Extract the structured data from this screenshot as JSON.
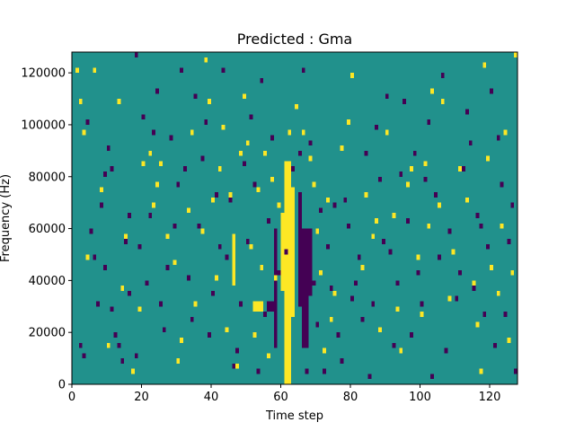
{
  "chart_data": {
    "type": "heatmap",
    "title": "Predicted : Gma",
    "xlabel": "Time step",
    "ylabel": "Frequency (Hz)",
    "xlim": [
      0,
      128
    ],
    "ylim": [
      0,
      128000
    ],
    "x_ticks": [
      0,
      20,
      40,
      60,
      80,
      100,
      120
    ],
    "y_ticks": [
      0,
      20000,
      40000,
      60000,
      80000,
      100000,
      120000
    ],
    "grid": false,
    "n_time_steps": 128,
    "n_freq_bins": 64,
    "bin_height_hz": 2000,
    "value_scale": {
      "low": -1,
      "background": 0,
      "high": 1
    },
    "colors": {
      "low": "#440154",
      "background": "#21918c",
      "high": "#fde725"
    },
    "yellow_bands": [
      {
        "t": [
          61,
          63
        ],
        "f": [
          0,
          86000
        ]
      },
      {
        "t": [
          60,
          61
        ],
        "f": [
          36000,
          66000
        ]
      },
      {
        "t": [
          63,
          64
        ],
        "f": [
          26000,
          76000
        ]
      },
      {
        "t": [
          52,
          55
        ],
        "f": [
          28000,
          32000
        ]
      },
      {
        "t": [
          46,
          47
        ],
        "f": [
          38000,
          58000
        ]
      }
    ],
    "purple_bands": [
      {
        "t": [
          66,
          68
        ],
        "f": [
          14000,
          60000
        ]
      },
      {
        "t": [
          65,
          66
        ],
        "f": [
          30000,
          74000
        ]
      },
      {
        "t": [
          68,
          69
        ],
        "f": [
          34000,
          60000
        ]
      },
      {
        "t": [
          56,
          59
        ],
        "f": [
          28000,
          32000
        ]
      },
      {
        "t": [
          58,
          59
        ],
        "f": [
          14000,
          60000
        ]
      }
    ],
    "yellow_cells": [
      [
        1,
        120000
      ],
      [
        2,
        108000
      ],
      [
        3,
        96000
      ],
      [
        6,
        120000
      ],
      [
        13,
        108000
      ],
      [
        15,
        56000
      ],
      [
        20,
        84000
      ],
      [
        22,
        88000
      ],
      [
        24,
        76000
      ],
      [
        25,
        84000
      ],
      [
        29,
        46000
      ],
      [
        30,
        8000
      ],
      [
        33,
        66000
      ],
      [
        34,
        96000
      ],
      [
        38,
        124000
      ],
      [
        39,
        108000
      ],
      [
        40,
        70000
      ],
      [
        41,
        40000
      ],
      [
        42,
        82000
      ],
      [
        44,
        20000
      ],
      [
        45,
        72000
      ],
      [
        47,
        6000
      ],
      [
        48,
        88000
      ],
      [
        49,
        110000
      ],
      [
        50,
        92000
      ],
      [
        52,
        18000
      ],
      [
        53,
        74000
      ],
      [
        54,
        44000
      ],
      [
        55,
        88000
      ],
      [
        57,
        78000
      ],
      [
        58,
        40000
      ],
      [
        59,
        68000
      ],
      [
        60,
        60000
      ],
      [
        62,
        96000
      ],
      [
        64,
        106000
      ],
      [
        66,
        96000
      ],
      [
        68,
        86000
      ],
      [
        70,
        58000
      ],
      [
        71,
        42000
      ],
      [
        73,
        70000
      ],
      [
        74,
        24000
      ],
      [
        77,
        90000
      ],
      [
        80,
        118000
      ],
      [
        84,
        72000
      ],
      [
        86,
        56000
      ],
      [
        88,
        20000
      ],
      [
        90,
        96000
      ],
      [
        92,
        64000
      ],
      [
        94,
        12000
      ],
      [
        97,
        82000
      ],
      [
        99,
        48000
      ],
      [
        100,
        26000
      ],
      [
        101,
        84000
      ],
      [
        103,
        112000
      ],
      [
        105,
        68000
      ],
      [
        108,
        32000
      ],
      [
        111,
        82000
      ],
      [
        115,
        38000
      ],
      [
        117,
        4000
      ],
      [
        118,
        122000
      ],
      [
        120,
        44000
      ],
      [
        122,
        34000
      ],
      [
        124,
        96000
      ],
      [
        126,
        42000
      ],
      [
        127,
        126000
      ],
      [
        4,
        48000
      ],
      [
        8,
        74000
      ],
      [
        10,
        14000
      ],
      [
        14,
        36000
      ],
      [
        17,
        4000
      ],
      [
        19,
        28000
      ],
      [
        23,
        68000
      ],
      [
        27,
        56000
      ],
      [
        31,
        16000
      ],
      [
        35,
        30000
      ],
      [
        37,
        58000
      ],
      [
        43,
        98000
      ],
      [
        51,
        52000
      ],
      [
        56,
        10000
      ],
      [
        69,
        76000
      ],
      [
        72,
        12000
      ],
      [
        75,
        34000
      ],
      [
        79,
        100000
      ],
      [
        83,
        44000
      ],
      [
        87,
        62000
      ],
      [
        93,
        28000
      ],
      [
        96,
        76000
      ],
      [
        102,
        60000
      ],
      [
        106,
        108000
      ],
      [
        109,
        50000
      ],
      [
        113,
        70000
      ],
      [
        116,
        22000
      ],
      [
        119,
        86000
      ],
      [
        123,
        60000
      ],
      [
        125,
        16000
      ]
    ],
    "purple_cells": [
      [
        2,
        14000
      ],
      [
        3,
        10000
      ],
      [
        5,
        58000
      ],
      [
        6,
        48000
      ],
      [
        7,
        30000
      ],
      [
        8,
        68000
      ],
      [
        9,
        80000
      ],
      [
        10,
        90000
      ],
      [
        11,
        28000
      ],
      [
        12,
        18000
      ],
      [
        13,
        14000
      ],
      [
        14,
        8000
      ],
      [
        15,
        54000
      ],
      [
        16,
        34000
      ],
      [
        18,
        126000
      ],
      [
        19,
        52000
      ],
      [
        20,
        102000
      ],
      [
        21,
        38000
      ],
      [
        22,
        64000
      ],
      [
        24,
        112000
      ],
      [
        26,
        20000
      ],
      [
        27,
        44000
      ],
      [
        28,
        94000
      ],
      [
        30,
        76000
      ],
      [
        31,
        120000
      ],
      [
        32,
        82000
      ],
      [
        34,
        24000
      ],
      [
        36,
        60000
      ],
      [
        38,
        100000
      ],
      [
        40,
        34000
      ],
      [
        42,
        52000
      ],
      [
        43,
        120000
      ],
      [
        45,
        70000
      ],
      [
        46,
        6000
      ],
      [
        47,
        12000
      ],
      [
        49,
        84000
      ],
      [
        51,
        102000
      ],
      [
        53,
        4000
      ],
      [
        55,
        26000
      ],
      [
        56,
        62000
      ],
      [
        57,
        94000
      ],
      [
        59,
        42000
      ],
      [
        61,
        50000
      ],
      [
        63,
        82000
      ],
      [
        65,
        88000
      ],
      [
        66,
        120000
      ],
      [
        67,
        4000
      ],
      [
        68,
        92000
      ],
      [
        69,
        38000
      ],
      [
        70,
        22000
      ],
      [
        71,
        66000
      ],
      [
        72,
        4000
      ],
      [
        73,
        52000
      ],
      [
        75,
        68000
      ],
      [
        76,
        18000
      ],
      [
        77,
        8000
      ],
      [
        78,
        70000
      ],
      [
        80,
        32000
      ],
      [
        81,
        38000
      ],
      [
        82,
        48000
      ],
      [
        83,
        24000
      ],
      [
        84,
        88000
      ],
      [
        85,
        2000
      ],
      [
        87,
        98000
      ],
      [
        88,
        78000
      ],
      [
        90,
        110000
      ],
      [
        91,
        50000
      ],
      [
        93,
        38000
      ],
      [
        95,
        108000
      ],
      [
        96,
        62000
      ],
      [
        97,
        18000
      ],
      [
        98,
        88000
      ],
      [
        100,
        30000
      ],
      [
        101,
        78000
      ],
      [
        103,
        2000
      ],
      [
        104,
        72000
      ],
      [
        105,
        48000
      ],
      [
        106,
        118000
      ],
      [
        107,
        12000
      ],
      [
        110,
        32000
      ],
      [
        112,
        82000
      ],
      [
        114,
        92000
      ],
      [
        115,
        36000
      ],
      [
        117,
        60000
      ],
      [
        119,
        52000
      ],
      [
        121,
        14000
      ],
      [
        122,
        94000
      ],
      [
        123,
        76000
      ],
      [
        124,
        26000
      ],
      [
        125,
        54000
      ],
      [
        126,
        68000
      ],
      [
        127,
        4000
      ],
      [
        4,
        100000
      ],
      [
        9,
        44000
      ],
      [
        11,
        82000
      ],
      [
        16,
        64000
      ],
      [
        18,
        10000
      ],
      [
        23,
        96000
      ],
      [
        25,
        30000
      ],
      [
        29,
        60000
      ],
      [
        33,
        40000
      ],
      [
        35,
        110000
      ],
      [
        37,
        86000
      ],
      [
        39,
        18000
      ],
      [
        41,
        72000
      ],
      [
        44,
        48000
      ],
      [
        48,
        30000
      ],
      [
        50,
        54000
      ],
      [
        52,
        76000
      ],
      [
        54,
        116000
      ],
      [
        74,
        36000
      ],
      [
        79,
        60000
      ],
      [
        86,
        30000
      ],
      [
        89,
        54000
      ],
      [
        92,
        14000
      ],
      [
        94,
        80000
      ],
      [
        99,
        42000
      ],
      [
        102,
        100000
      ],
      [
        108,
        58000
      ],
      [
        111,
        42000
      ],
      [
        113,
        104000
      ],
      [
        116,
        64000
      ],
      [
        118,
        26000
      ],
      [
        120,
        112000
      ]
    ]
  }
}
